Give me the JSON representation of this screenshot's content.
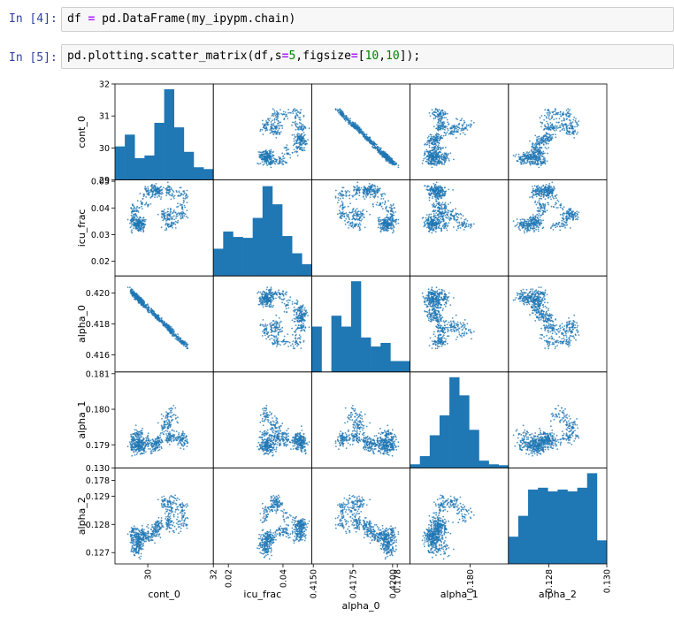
{
  "cells": [
    {
      "prompt": "In [4]:",
      "code": [
        {
          "t": "df ",
          "c": "kw"
        },
        {
          "t": "=",
          "c": "op"
        },
        {
          "t": " pd.DataFrame(my_ipypm.chain)",
          "c": "kw"
        }
      ]
    },
    {
      "prompt": "In [5]:",
      "code": [
        {
          "t": "pd.plotting.scatter_matrix(df,s",
          "c": "kw"
        },
        {
          "t": "=",
          "c": "op"
        },
        {
          "t": "5",
          "c": "num"
        },
        {
          "t": ",figsize",
          "c": "kw"
        },
        {
          "t": "=",
          "c": "op"
        },
        {
          "t": "[",
          "c": "kw"
        },
        {
          "t": "10",
          "c": "num"
        },
        {
          "t": ",",
          "c": "kw"
        },
        {
          "t": "10",
          "c": "num"
        },
        {
          "t": "]);",
          "c": "kw"
        }
      ]
    }
  ],
  "colors": {
    "mark": "#1f77b4",
    "prompt": "#303f9f",
    "cell_bg": "#f7f7f7"
  },
  "chart_data": {
    "type": "scatter",
    "title": "",
    "variables": [
      "cont_0",
      "icu_frac",
      "alpha_0",
      "alpha_1",
      "alpha_2"
    ],
    "ranges": {
      "cont_0": [
        29.0,
        32.0
      ],
      "icu_frac": [
        0.0145,
        0.0505
      ],
      "alpha_0": [
        0.4149,
        0.4211
      ],
      "alpha_1": [
        0.17835,
        0.18105
      ],
      "alpha_2": [
        0.1266,
        0.13
      ]
    },
    "y_ticks": {
      "cont_0": [
        "29",
        "30",
        "31",
        "32"
      ],
      "icu_frac": [
        "0.02",
        "0.03",
        "0.04",
        "0.05"
      ],
      "alpha_0": [
        "0.416",
        "0.418",
        "0.420"
      ],
      "alpha_1": [
        "0.178",
        "0.179",
        "0.180",
        "0.181"
      ],
      "alpha_2": [
        "0.127",
        "0.128",
        "0.129",
        "0.130"
      ]
    },
    "x_ticks": {
      "cont_0": [
        "30",
        "32"
      ],
      "icu_frac": [
        "0.02",
        "0.04"
      ],
      "alpha_0": [
        "0.4150",
        "0.4175",
        "0.4200"
      ],
      "alpha_1": [
        "0.178",
        "0.180"
      ],
      "alpha_2": [
        "0.128",
        "0.130"
      ]
    },
    "y_tick_values": {
      "cont_0": [
        29,
        30,
        31,
        32
      ],
      "icu_frac": [
        0.02,
        0.03,
        0.04,
        0.05
      ],
      "alpha_0": [
        0.416,
        0.418,
        0.42
      ],
      "alpha_1": [
        0.178,
        0.179,
        0.18,
        0.181
      ],
      "alpha_2": [
        0.127,
        0.128,
        0.129,
        0.13
      ]
    },
    "x_tick_values": {
      "cont_0": [
        30,
        32
      ],
      "icu_frac": [
        0.02,
        0.04
      ],
      "alpha_0": [
        0.415,
        0.4175,
        0.42
      ],
      "alpha_1": [
        0.178,
        0.18
      ],
      "alpha_2": [
        0.128,
        0.13
      ]
    },
    "histograms": {
      "cont_0": [
        0.37,
        0.5,
        0.24,
        0.27,
        0.63,
        1.0,
        0.58,
        0.31,
        0.14,
        0.12
      ],
      "icu_frac": [
        0.3,
        0.49,
        0.43,
        0.42,
        0.64,
        0.99,
        0.79,
        0.44,
        0.25,
        0.13
      ],
      "alpha_0": [
        0.5,
        0.0,
        0.62,
        0.5,
        1.0,
        0.38,
        0.28,
        0.32,
        0.12,
        0.12
      ],
      "alpha_1": [
        0.04,
        0.13,
        0.36,
        0.58,
        1.0,
        0.8,
        0.42,
        0.08,
        0.04,
        0.03
      ],
      "alpha_2": [
        0.3,
        0.53,
        0.82,
        0.84,
        0.8,
        0.82,
        0.8,
        0.84,
        1.0,
        0.26
      ]
    },
    "points_per_panel": 650,
    "point_size": 5,
    "grid": false
  }
}
